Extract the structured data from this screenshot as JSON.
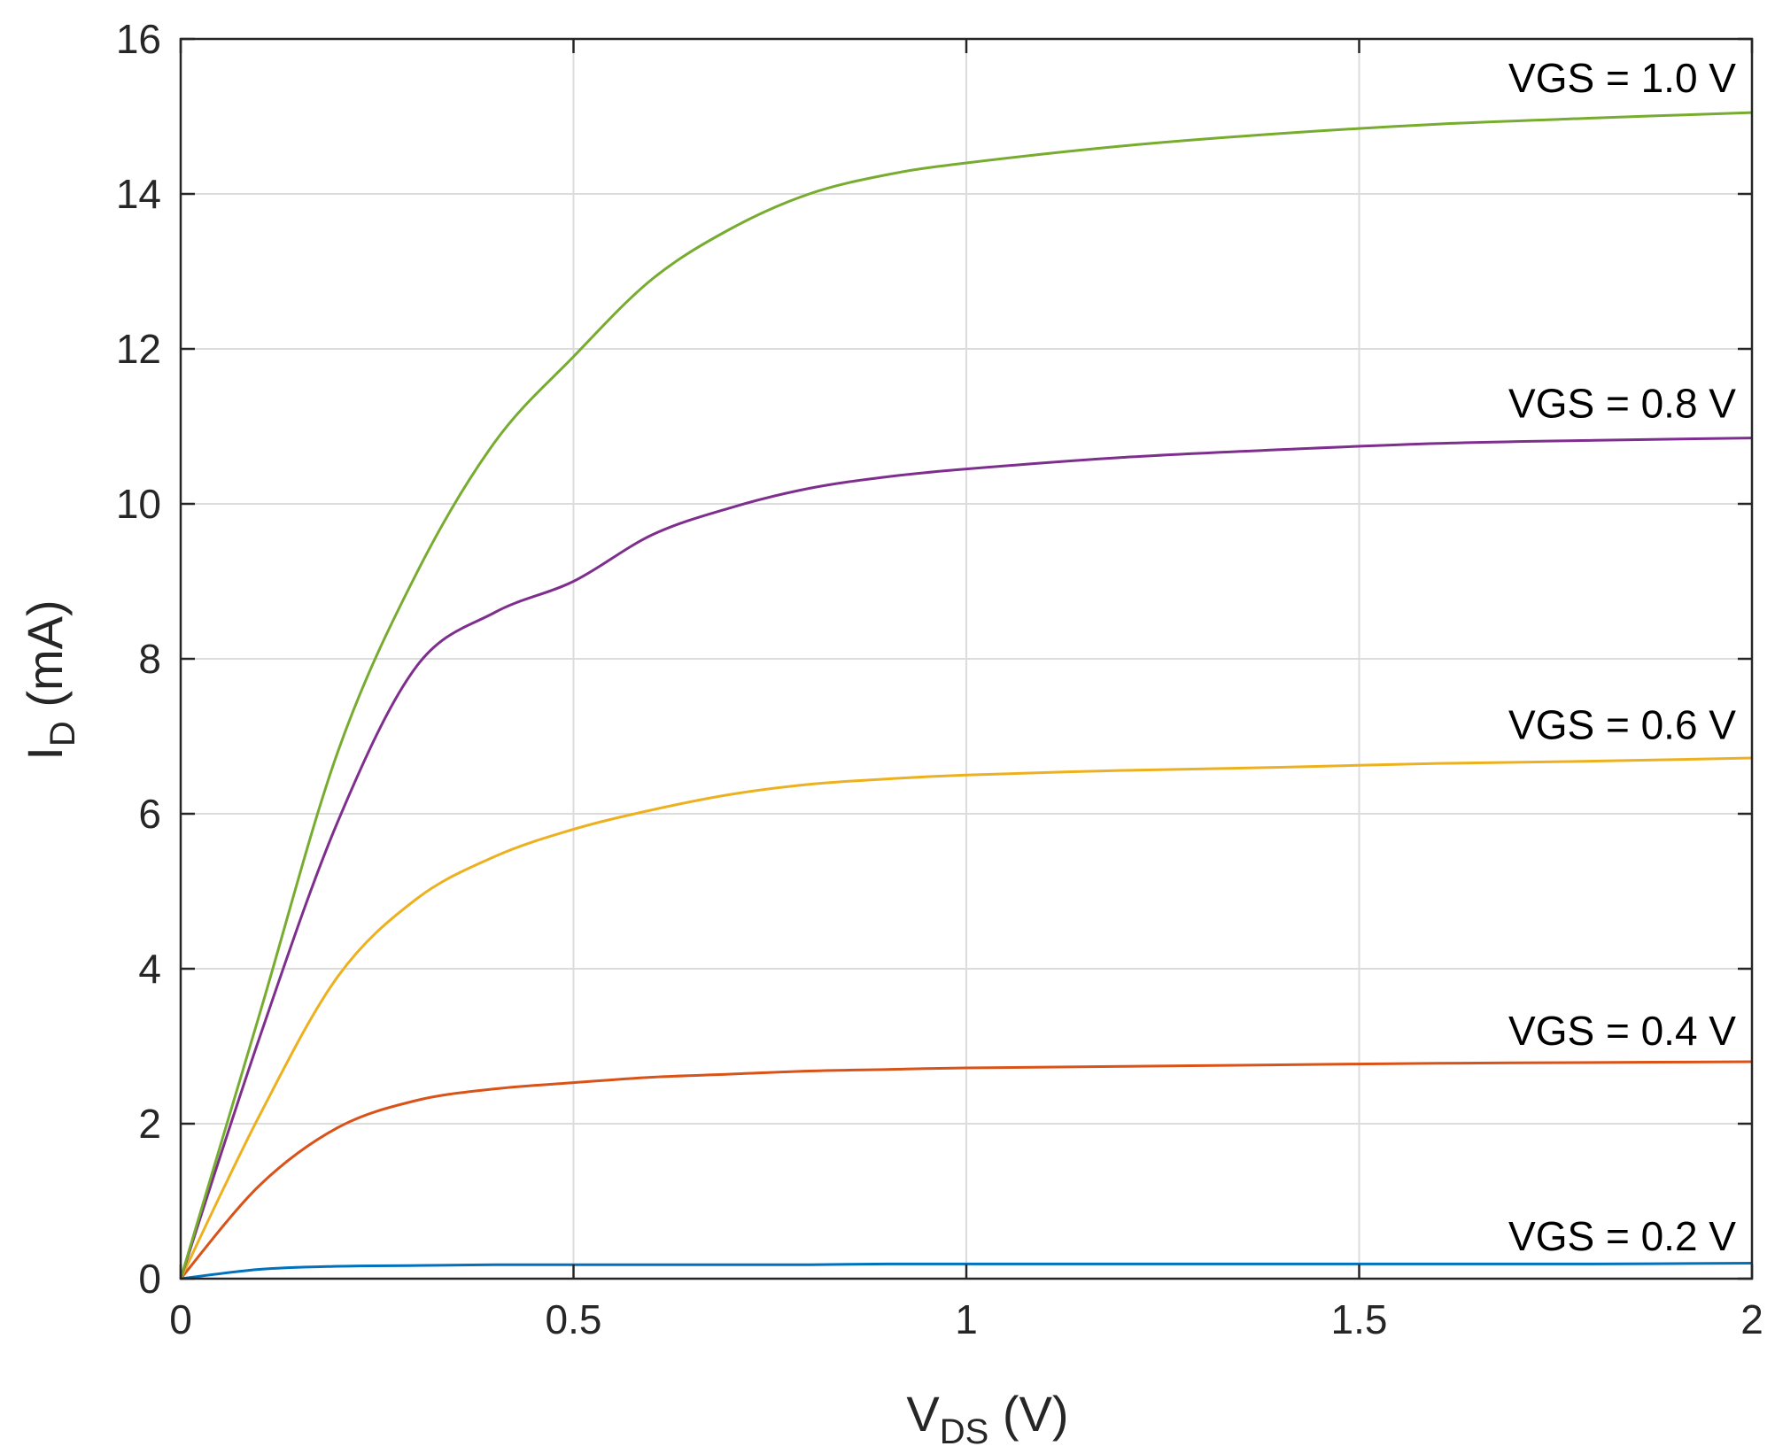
{
  "chart_data": {
    "type": "line",
    "title": "",
    "xlabel": {
      "main": "V",
      "sub": "DS",
      "suffix": " (V)"
    },
    "ylabel": {
      "main": "I",
      "sub": "D",
      "suffix": " (mA)"
    },
    "xlim": [
      0,
      2
    ],
    "ylim": [
      0,
      16
    ],
    "grid": true,
    "xticks": [
      0,
      0.5,
      1,
      1.5,
      2
    ],
    "xtick_labels": [
      "0",
      "0.5",
      "1",
      "1.5",
      "2"
    ],
    "yticks": [
      0,
      2,
      4,
      6,
      8,
      10,
      12,
      14,
      16
    ],
    "ytick_labels": [
      "0",
      "2",
      "4",
      "6",
      "8",
      "10",
      "12",
      "14",
      "16"
    ],
    "x": [
      0,
      0.1,
      0.2,
      0.3,
      0.4,
      0.5,
      0.6,
      0.7,
      0.8,
      0.9,
      1.0,
      1.2,
      1.4,
      1.6,
      1.8,
      2.0
    ],
    "series": [
      {
        "name": "VGS = 0.2 V",
        "color": "#0072BD",
        "values": [
          0,
          0.12,
          0.16,
          0.17,
          0.18,
          0.18,
          0.18,
          0.18,
          0.18,
          0.19,
          0.19,
          0.19,
          0.19,
          0.19,
          0.19,
          0.2
        ]
      },
      {
        "name": "VGS = 0.4 V",
        "color": "#D95319",
        "values": [
          0,
          1.2,
          1.95,
          2.3,
          2.45,
          2.53,
          2.6,
          2.64,
          2.68,
          2.7,
          2.72,
          2.74,
          2.76,
          2.78,
          2.79,
          2.8
        ]
      },
      {
        "name": "VGS = 0.6 V",
        "color": "#EDB120",
        "values": [
          0,
          2.1,
          3.9,
          4.9,
          5.45,
          5.8,
          6.05,
          6.25,
          6.38,
          6.45,
          6.5,
          6.56,
          6.6,
          6.65,
          6.68,
          6.72
        ]
      },
      {
        "name": "VGS = 0.8 V",
        "color": "#7E2F8E",
        "values": [
          0,
          3.1,
          5.9,
          7.9,
          8.6,
          9.0,
          9.6,
          9.95,
          10.2,
          10.35,
          10.45,
          10.6,
          10.7,
          10.78,
          10.82,
          10.85
        ]
      },
      {
        "name": "VGS = 1.0 V",
        "color": "#77AC30",
        "values": [
          0,
          3.4,
          6.8,
          9.1,
          10.8,
          11.9,
          12.9,
          13.55,
          14.0,
          14.25,
          14.4,
          14.62,
          14.78,
          14.9,
          14.98,
          15.05
        ]
      }
    ],
    "annotations": [
      {
        "text": "VGS = 1.0 V",
        "x": 1.69,
        "y": 15.5
      },
      {
        "text": "VGS = 0.8 V",
        "x": 1.69,
        "y": 11.3
      },
      {
        "text": "VGS = 0.6 V",
        "x": 1.69,
        "y": 7.15
      },
      {
        "text": "VGS = 0.4 V",
        "x": 1.69,
        "y": 3.2
      },
      {
        "text": "VGS = 0.2 V",
        "x": 1.69,
        "y": 0.55
      }
    ]
  }
}
